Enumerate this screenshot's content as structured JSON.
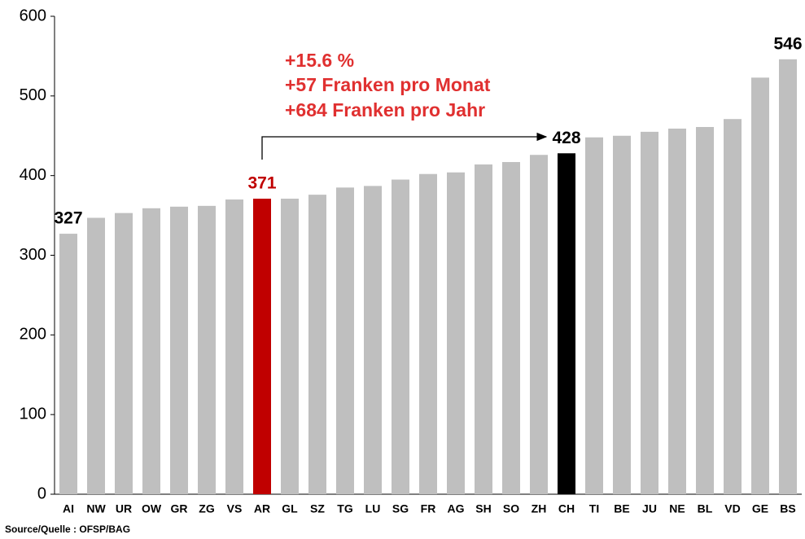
{
  "chart_data": {
    "type": "bar",
    "categories": [
      "AI",
      "NW",
      "UR",
      "OW",
      "GR",
      "ZG",
      "VS",
      "AR",
      "GL",
      "SZ",
      "TG",
      "LU",
      "SG",
      "FR",
      "AG",
      "SH",
      "SO",
      "ZH",
      "CH",
      "TI",
      "BE",
      "JU",
      "NE",
      "BL",
      "VD",
      "GE",
      "BS"
    ],
    "values": [
      327,
      347,
      353,
      359,
      361,
      362,
      370,
      371,
      371,
      376,
      385,
      387,
      395,
      402,
      404,
      414,
      417,
      426,
      428,
      448,
      450,
      455,
      459,
      461,
      471,
      523,
      546
    ],
    "colors": [
      "#bfbfbf",
      "#bfbfbf",
      "#bfbfbf",
      "#bfbfbf",
      "#bfbfbf",
      "#bfbfbf",
      "#bfbfbf",
      "#c00000",
      "#bfbfbf",
      "#bfbfbf",
      "#bfbfbf",
      "#bfbfbf",
      "#bfbfbf",
      "#bfbfbf",
      "#bfbfbf",
      "#bfbfbf",
      "#bfbfbf",
      "#bfbfbf",
      "#000000",
      "#bfbfbf",
      "#bfbfbf",
      "#bfbfbf",
      "#bfbfbf",
      "#bfbfbf",
      "#bfbfbf",
      "#bfbfbf",
      "#bfbfbf"
    ],
    "value_labels": [
      "327",
      null,
      null,
      null,
      null,
      null,
      null,
      "371",
      null,
      null,
      null,
      null,
      null,
      null,
      null,
      null,
      null,
      null,
      "428",
      null,
      null,
      null,
      null,
      null,
      null,
      null,
      "546"
    ],
    "ylim": [
      0,
      600
    ],
    "yticks": [
      0,
      100,
      200,
      300,
      400,
      500,
      600
    ],
    "annotations": [
      "+15.6 %",
      "+57 Franken pro Monat",
      "+684 Franken pro Jahr"
    ],
    "source": "Source/Quelle : OFSP/BAG"
  }
}
